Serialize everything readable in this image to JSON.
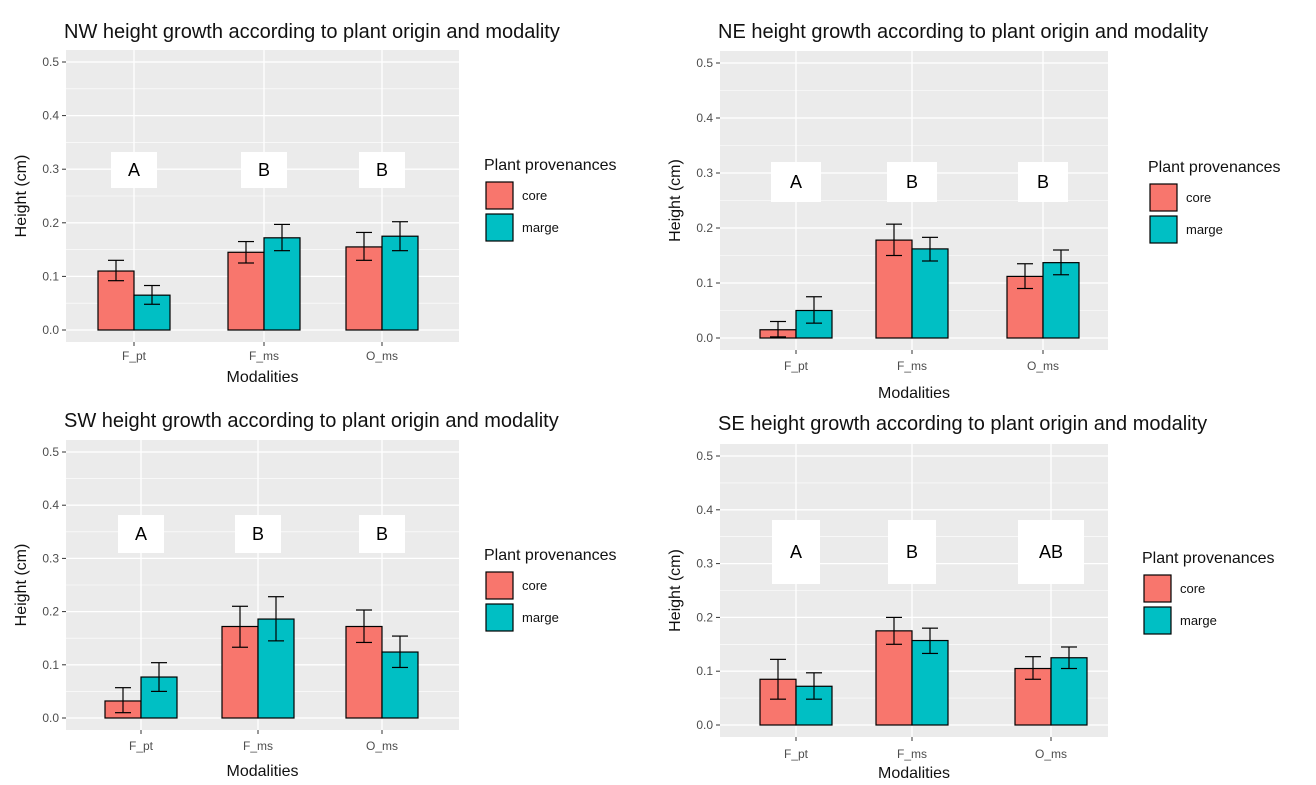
{
  "chart_data": [
    {
      "type": "bar",
      "title": "NW height growth according to plant origin and modality",
      "xlabel": "Modalities",
      "ylabel": "Height (cm)",
      "ylim": [
        0,
        0.5
      ],
      "y_ticks": [
        "0.0",
        "0.1",
        "0.2",
        "0.3",
        "0.4",
        "0.5"
      ],
      "categories": [
        "F_pt",
        "F_ms",
        "O_ms"
      ],
      "series": [
        {
          "name": "core",
          "values": [
            0.11,
            0.145,
            0.155
          ],
          "err_low": [
            0.092,
            0.125,
            0.13
          ],
          "err_high": [
            0.13,
            0.165,
            0.182
          ]
        },
        {
          "name": "marge",
          "values": [
            0.065,
            0.172,
            0.175
          ],
          "err_low": [
            0.048,
            0.148,
            0.148
          ],
          "err_high": [
            0.083,
            0.197,
            0.202
          ]
        }
      ],
      "group_letters": [
        "A",
        "B",
        "B"
      ],
      "legend_title": "Plant provenances",
      "legend": [
        "core",
        "marge"
      ],
      "legend_position": "right",
      "grid": true
    },
    {
      "type": "bar",
      "title": "NE height growth according to plant origin and modality",
      "xlabel": "Modalities",
      "ylabel": "Height (cm)",
      "ylim": [
        0,
        0.5
      ],
      "y_ticks": [
        "0.0",
        "0.1",
        "0.2",
        "0.3",
        "0.4",
        "0.5"
      ],
      "categories": [
        "F_pt",
        "F_ms",
        "O_ms"
      ],
      "series": [
        {
          "name": "core",
          "values": [
            0.015,
            0.178,
            0.112
          ],
          "err_low": [
            0.002,
            0.15,
            0.09
          ],
          "err_high": [
            0.03,
            0.207,
            0.135
          ]
        },
        {
          "name": "marge",
          "values": [
            0.05,
            0.162,
            0.137
          ],
          "err_low": [
            0.027,
            0.14,
            0.115
          ],
          "err_high": [
            0.075,
            0.183,
            0.16
          ]
        }
      ],
      "group_letters": [
        "A",
        "B",
        "B"
      ],
      "legend_title": "Plant provenances",
      "legend": [
        "core",
        "marge"
      ],
      "legend_position": "right",
      "grid": true
    },
    {
      "type": "bar",
      "title": "SW height growth according to plant origin and modality",
      "xlabel": "Modalities",
      "ylabel": "Height (cm)",
      "ylim": [
        0,
        0.5
      ],
      "y_ticks": [
        "0.0",
        "0.1",
        "0.2",
        "0.3",
        "0.4",
        "0.5"
      ],
      "categories": [
        "F_pt",
        "F_ms",
        "O_ms"
      ],
      "series": [
        {
          "name": "core",
          "values": [
            0.032,
            0.172,
            0.172
          ],
          "err_low": [
            0.01,
            0.133,
            0.142
          ],
          "err_high": [
            0.057,
            0.21,
            0.203
          ]
        },
        {
          "name": "marge",
          "values": [
            0.077,
            0.186,
            0.124
          ],
          "err_low": [
            0.05,
            0.145,
            0.095
          ],
          "err_high": [
            0.104,
            0.228,
            0.154
          ]
        }
      ],
      "group_letters": [
        "A",
        "B",
        "B"
      ],
      "legend_title": "Plant provenances",
      "legend": [
        "core",
        "marge"
      ],
      "legend_position": "right",
      "grid": true
    },
    {
      "type": "bar",
      "title": "SE height growth according to plant origin and modality",
      "xlabel": "Modalities",
      "ylabel": "Height (cm)",
      "ylim": [
        0,
        0.5
      ],
      "y_ticks": [
        "0.0",
        "0.1",
        "0.2",
        "0.3",
        "0.4",
        "0.5"
      ],
      "categories": [
        "F_pt",
        "F_ms",
        "O_ms"
      ],
      "series": [
        {
          "name": "core",
          "values": [
            0.085,
            0.175,
            0.105
          ],
          "err_low": [
            0.048,
            0.15,
            0.085
          ],
          "err_high": [
            0.122,
            0.2,
            0.127
          ]
        },
        {
          "name": "marge",
          "values": [
            0.072,
            0.157,
            0.125
          ],
          "err_low": [
            0.048,
            0.133,
            0.105
          ],
          "err_high": [
            0.097,
            0.18,
            0.145
          ]
        }
      ],
      "group_letters": [
        "A",
        "B",
        "AB"
      ],
      "legend_title": "Plant provenances",
      "legend": [
        "core",
        "marge"
      ],
      "legend_position": "right",
      "grid": true
    }
  ],
  "colors": {
    "core": "#F8766D",
    "marge": "#00BFC4",
    "panel_background": "#EBEBEB",
    "grid": "#FFFFFF"
  }
}
